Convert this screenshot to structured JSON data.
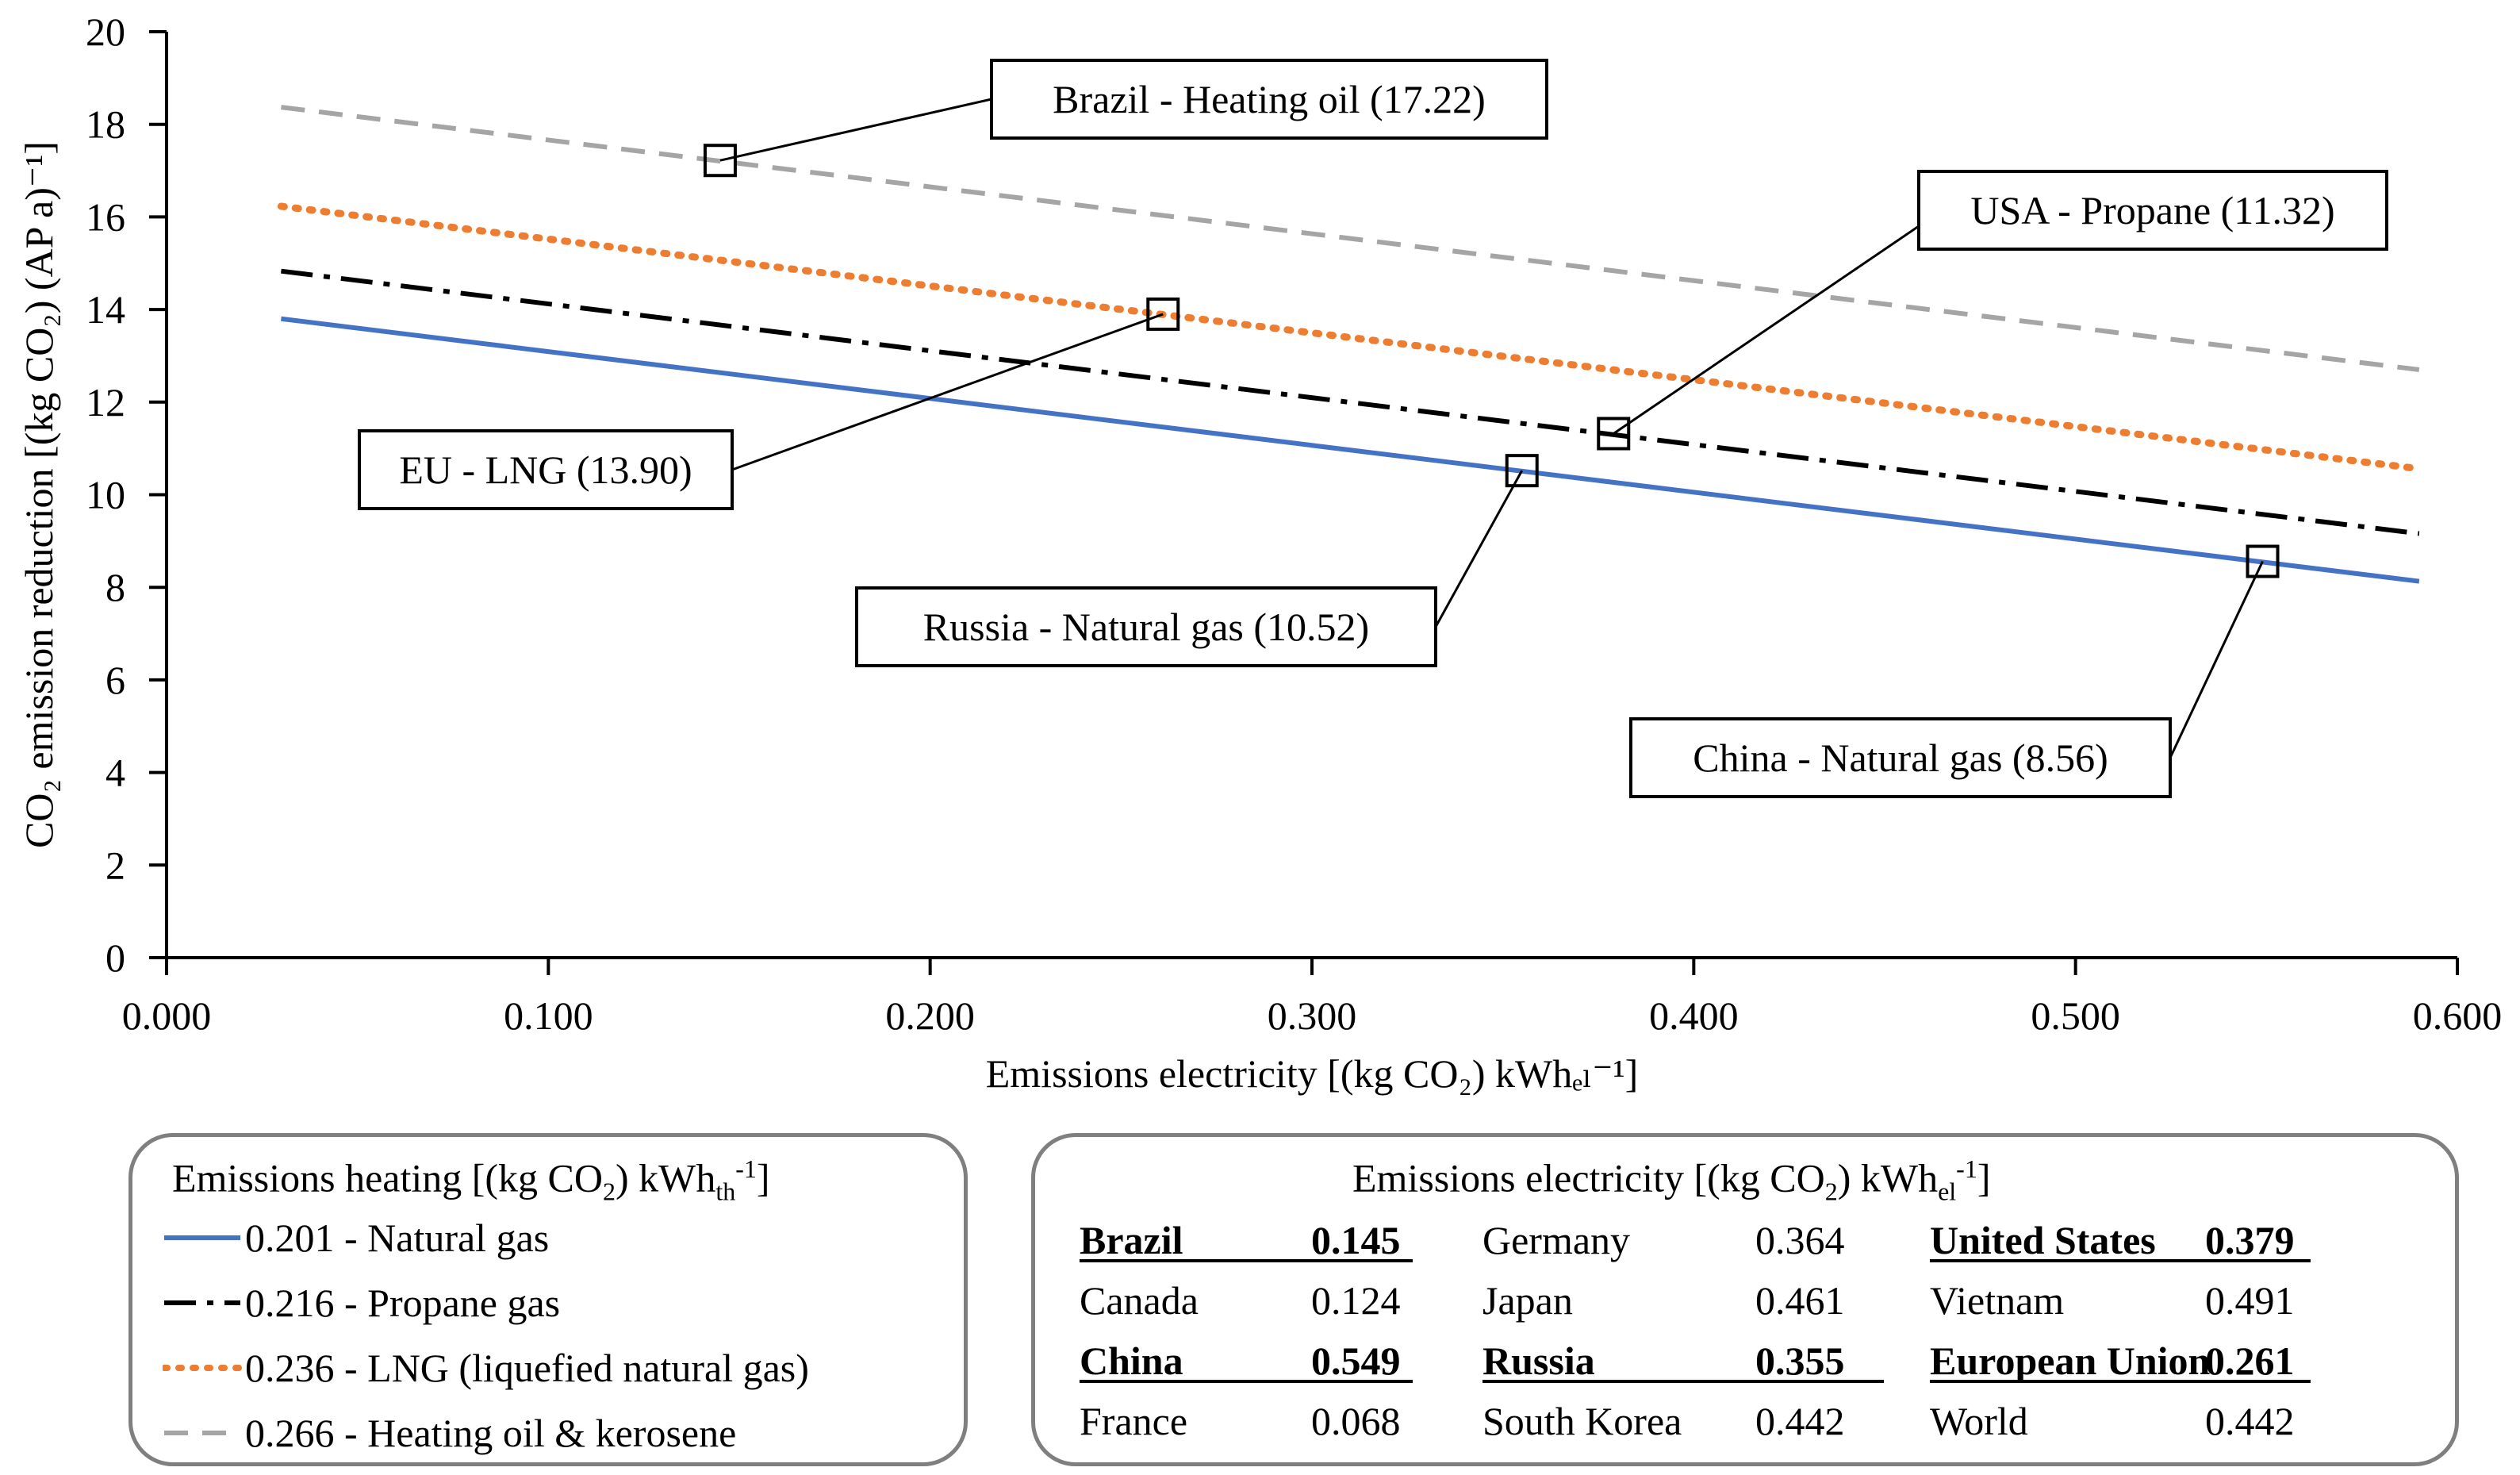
{
  "chart_data": {
    "type": "line",
    "xlabel": "Emissions electricity [(kg CO₂) kWhₑₗ⁻¹]",
    "ylabel": "CO₂ emission reduction [(kg CO₂) (AP a)⁻¹]",
    "xlim": [
      0,
      0.6
    ],
    "ylim": [
      0,
      20
    ],
    "x_ticks": [
      "0.000",
      "0.100",
      "0.200",
      "0.300",
      "0.400",
      "0.500",
      "0.600"
    ],
    "y_ticks": [
      "0",
      "2",
      "4",
      "6",
      "8",
      "10",
      "12",
      "14",
      "16",
      "18",
      "20"
    ],
    "grid": false,
    "series": [
      {
        "name": "0.201 - Natural gas",
        "color": "#4472c4",
        "style": "solid",
        "x": [
          0.03,
          0.59
        ],
        "y": [
          13.8,
          8.13
        ]
      },
      {
        "name": "0.216 - Propane gas",
        "color": "#000000",
        "style": "dashdot",
        "x": [
          0.03,
          0.59
        ],
        "y": [
          14.83,
          9.16
        ]
      },
      {
        "name": "0.236 - LNG (liquefied natural gas)",
        "color": "#ed7d31",
        "style": "dotted",
        "x": [
          0.03,
          0.59
        ],
        "y": [
          16.23,
          10.56
        ]
      },
      {
        "name": "0.266 - Heating oil & kerosene",
        "color": "#a5a5a5",
        "style": "dashed",
        "x": [
          0.03,
          0.59
        ],
        "y": [
          18.37,
          12.7
        ]
      }
    ],
    "annotations": [
      {
        "label": "Brazil - Heating oil (17.22)",
        "x": 0.145,
        "y": 17.22
      },
      {
        "label": "EU - LNG (13.90)",
        "x": 0.261,
        "y": 13.9
      },
      {
        "label": "USA - Propane (11.32)",
        "x": 0.379,
        "y": 11.32
      },
      {
        "label": "Russia - Natural gas (10.52)",
        "x": 0.355,
        "y": 10.52
      },
      {
        "label": "China - Natural gas (8.56)",
        "x": 0.549,
        "y": 8.56
      }
    ]
  },
  "heating_legend": {
    "title_pre": "Emissions heating [(kg CO",
    "title_sub": "2",
    "title_mid": ") kWh",
    "title_sub2": "th",
    "title_sup": "-1",
    "title_post": "]",
    "items": [
      {
        "label": "0.201 - Natural gas",
        "color": "#4472c4",
        "style": "solid"
      },
      {
        "label": "0.216 - Propane gas",
        "color": "#000000",
        "style": "dashdot"
      },
      {
        "label": "0.236 - LNG (liquefied natural gas)",
        "color": "#ed7d31",
        "style": "dotted"
      },
      {
        "label": "0.266 - Heating oil & kerosene",
        "color": "#a5a5a5",
        "style": "dashed"
      }
    ]
  },
  "electricity_legend": {
    "title_pre": "Emissions electricity [(kg CO",
    "title_sub": "2",
    "title_mid": ") kWh",
    "title_sub2": "el",
    "title_sup": "-1",
    "title_post": "]",
    "rows": [
      [
        {
          "country": "Brazil",
          "value": "0.145",
          "highlight": true
        },
        {
          "country": "Germany",
          "value": "0.364",
          "highlight": false
        },
        {
          "country": "United States",
          "value": "0.379",
          "highlight": true
        }
      ],
      [
        {
          "country": "Canada",
          "value": "0.124",
          "highlight": false
        },
        {
          "country": "Japan",
          "value": "0.461",
          "highlight": false
        },
        {
          "country": "Vietnam",
          "value": "0.491",
          "highlight": false
        }
      ],
      [
        {
          "country": "China",
          "value": "0.549",
          "highlight": true
        },
        {
          "country": "Russia",
          "value": "0.355",
          "highlight": true
        },
        {
          "country": "European Union",
          "value": "0.261",
          "highlight": true
        }
      ],
      [
        {
          "country": "France",
          "value": "0.068",
          "highlight": false
        },
        {
          "country": "South Korea",
          "value": "0.442",
          "highlight": false
        },
        {
          "country": "World",
          "value": "0.442",
          "highlight": false
        }
      ]
    ]
  }
}
